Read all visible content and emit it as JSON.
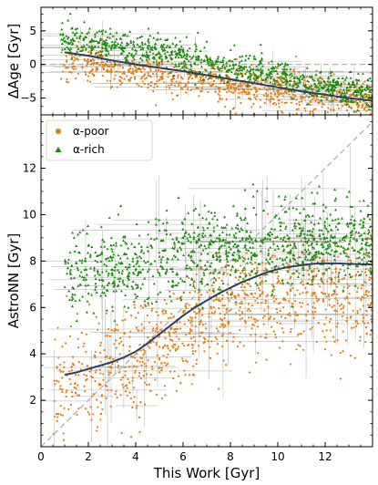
{
  "chart_data": [
    {
      "type": "scatter",
      "panel": "top",
      "title": "",
      "xlabel": "",
      "ylabel": "ΔAge [Gyr]",
      "xlim": [
        0,
        14
      ],
      "ylim": [
        -7.5,
        8.5
      ],
      "yticks": [
        -5,
        0,
        5
      ],
      "reference_line": {
        "style": "dashed",
        "y": 0,
        "color": "#aaaaaa"
      },
      "series": [
        {
          "label": "α-poor",
          "color": "#e87d0e",
          "marker": "circle",
          "trend_x": [
            1,
            2,
            4,
            6,
            8,
            10,
            12,
            14
          ],
          "trend_y": [
            0.4,
            -0.1,
            -1.2,
            -2.0,
            -3.0,
            -3.8,
            -4.7,
            -5.6
          ],
          "spread": 1.4
        },
        {
          "label": "α-rich",
          "color": "#1a8a0a",
          "marker": "triangle",
          "trend_x": [
            1,
            2,
            4,
            6,
            8,
            10,
            12,
            14
          ],
          "trend_y": [
            3.8,
            3.2,
            2.4,
            1.2,
            -0.3,
            -1.8,
            -3.3,
            -4.8
          ],
          "spread": 1.2
        }
      ],
      "running_median": {
        "color": "#2c3e66",
        "x": [
          1.0,
          2.0,
          3.0,
          4.0,
          5.0,
          6.0,
          7.0,
          8.0,
          9.0,
          10.0,
          11.0,
          12.0,
          13.0,
          14.0
        ],
        "y": [
          1.8,
          1.3,
          0.6,
          0.0,
          -0.5,
          -1.0,
          -1.6,
          -2.2,
          -2.8,
          -3.4,
          -4.0,
          -4.5,
          -5.0,
          -5.4
        ]
      }
    },
    {
      "type": "scatter",
      "panel": "bottom",
      "title": "",
      "xlabel": "This Work [Gyr]",
      "ylabel": "AstroNN [Gyr]",
      "xlim": [
        0,
        14
      ],
      "ylim": [
        0,
        14.3
      ],
      "xticks": [
        0,
        2,
        4,
        6,
        8,
        10,
        12
      ],
      "yticks": [
        2,
        4,
        6,
        8,
        10,
        12
      ],
      "reference_line": {
        "style": "dashed",
        "line": "one-to-one",
        "color": "#aaaaaa"
      },
      "legend": {
        "position": "top-left",
        "entries": [
          {
            "label": "α-poor",
            "color": "#e87d0e",
            "marker": "circle"
          },
          {
            "label": "α-rich",
            "color": "#1a8a0a",
            "marker": "triangle"
          }
        ]
      },
      "series": [
        {
          "label": "α-poor",
          "color": "#e87d0e",
          "marker": "circle",
          "x_range": [
            0.5,
            14
          ],
          "trend_x": [
            1,
            3,
            5,
            7,
            9,
            11,
            13
          ],
          "trend_y": [
            2.9,
            3.4,
            4.4,
            5.6,
            6.5,
            6.8,
            6.6
          ],
          "spread": 1.2
        },
        {
          "label": "α-rich",
          "color": "#1a8a0a",
          "marker": "triangle",
          "x_range": [
            1,
            14
          ],
          "trend_x": [
            1,
            3,
            5,
            7,
            9,
            11,
            13
          ],
          "trend_y": [
            7.4,
            7.8,
            8.1,
            8.4,
            8.6,
            8.7,
            8.8
          ],
          "spread": 0.9
        }
      ],
      "running_median": {
        "color": "#2c3e66",
        "x": [
          1.0,
          1.5,
          2.0,
          2.5,
          3.0,
          3.5,
          4.0,
          4.5,
          5.0,
          5.5,
          6.0,
          6.5,
          7.0,
          7.5,
          8.0,
          8.5,
          9.0,
          9.5,
          10.0,
          10.5,
          11.0,
          11.5,
          12.0,
          12.5,
          13.0,
          13.5,
          14.0
        ],
        "y": [
          3.1,
          3.2,
          3.35,
          3.5,
          3.65,
          3.85,
          4.1,
          4.45,
          4.85,
          5.25,
          5.65,
          6.0,
          6.3,
          6.6,
          6.85,
          7.1,
          7.3,
          7.5,
          7.65,
          7.75,
          7.82,
          7.88,
          7.9,
          7.9,
          7.88,
          7.86,
          7.85
        ]
      }
    }
  ]
}
